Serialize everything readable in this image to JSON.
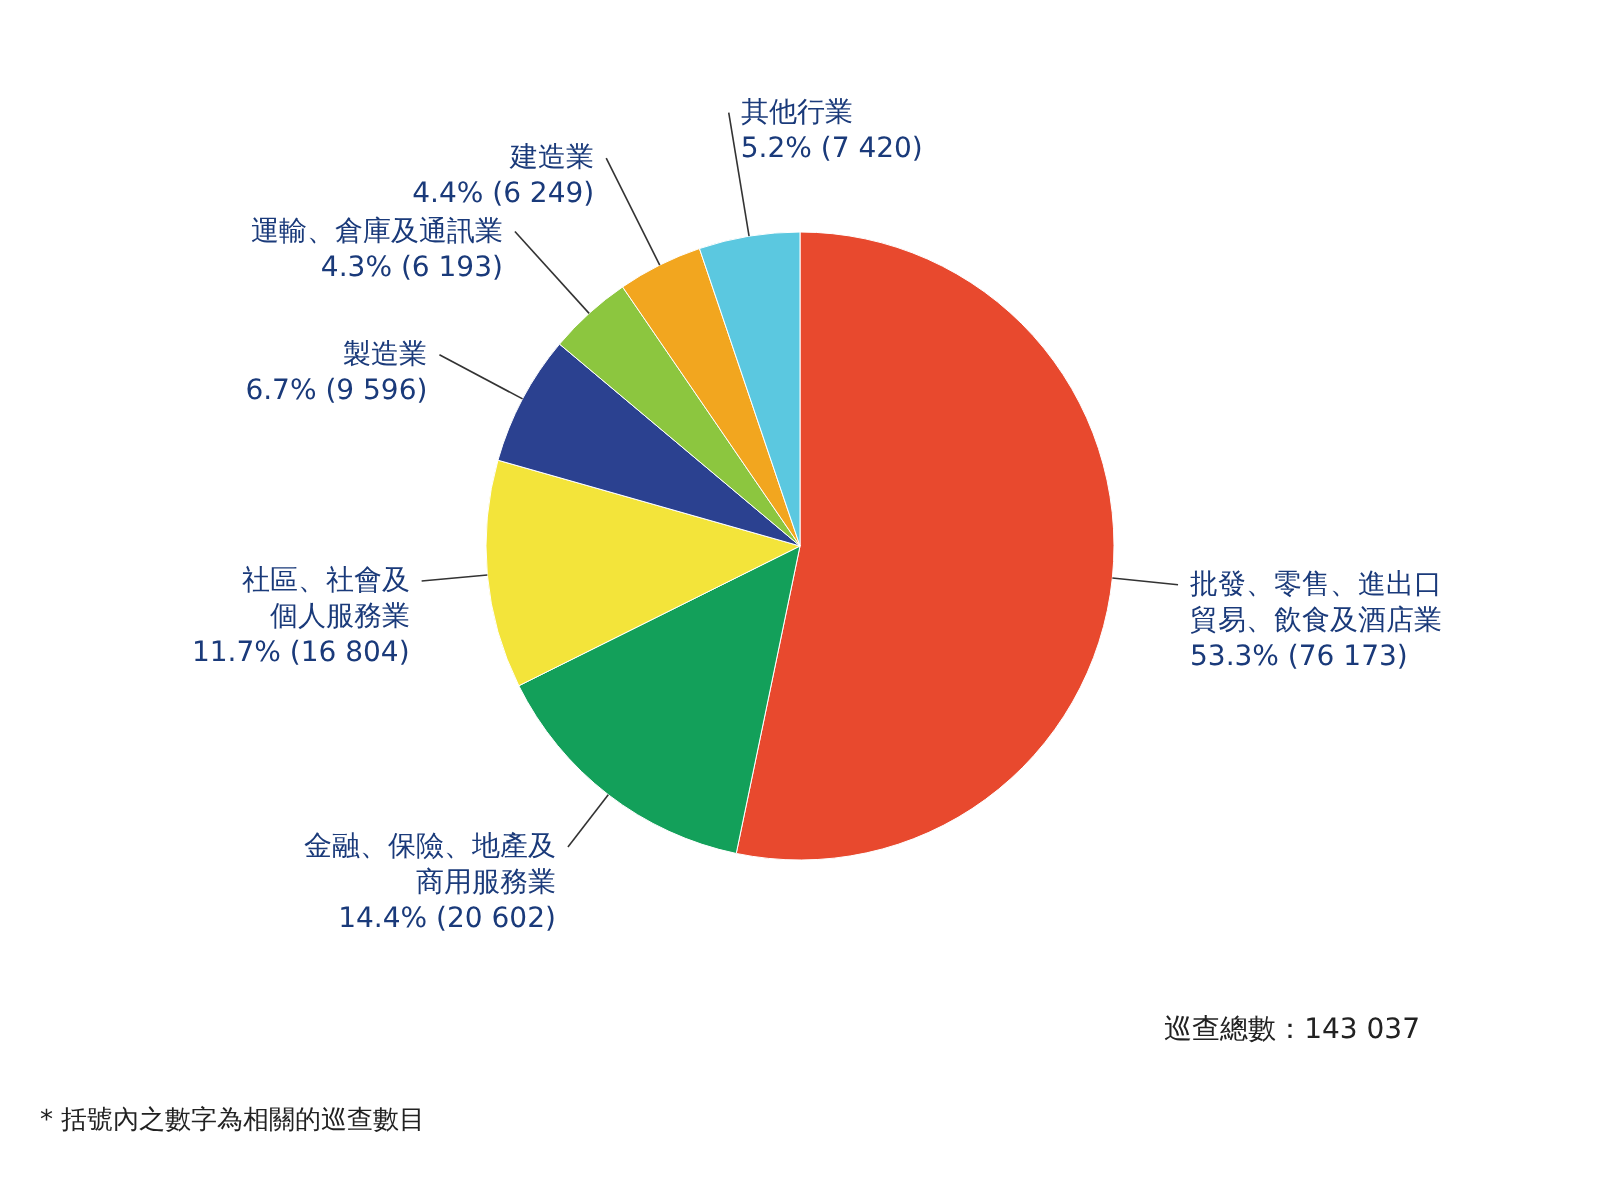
{
  "chart_data": {
    "type": "pie",
    "categories": [
      "批發、零售、進出口貿易、飲食及酒店業",
      "金融、保險、地產及商用服務業",
      "社區、社會及個人服務業",
      "製造業",
      "運輸、倉庫及通訊業",
      "建造業",
      "其他行業"
    ],
    "values": [
      76173,
      20602,
      16804,
      9596,
      6193,
      6249,
      7420
    ],
    "value_labels": [
      "53.3% (76 173)",
      "14.4% (20 602)",
      "11.7% (16 804)",
      "6.7% (9 596)",
      "4.3% (6 193)",
      "4.4% (6 249)",
      "5.2% (7 420)"
    ],
    "colors": [
      "#e8492e",
      "#13a05a",
      "#f3e43a",
      "#2b4190",
      "#8cc63f",
      "#f2a61f",
      "#5bc8e0"
    ],
    "annotations": [
      "巡查總數：143 037",
      "* 括號內之數字為相關的巡查數目"
    ]
  }
}
